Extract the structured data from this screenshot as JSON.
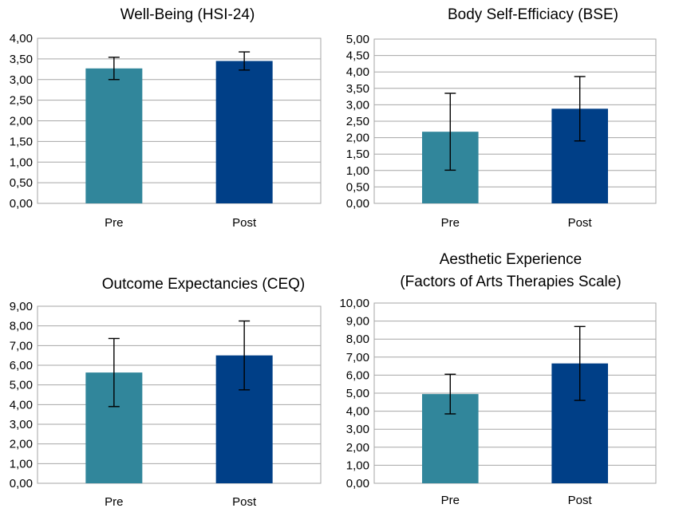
{
  "palette": {
    "pre": "#31869b",
    "post": "#003f87"
  },
  "chart_data": [
    {
      "type": "bar",
      "title": "Well-Being (HSI-24)",
      "categories": [
        "Pre",
        "Post"
      ],
      "values": [
        3.27,
        3.45
      ],
      "errors": [
        0.27,
        0.22
      ],
      "ylim": [
        0,
        4
      ],
      "ystep": 0.5,
      "ytick_labels": [
        "0,00",
        "0,50",
        "1,00",
        "1,50",
        "2,00",
        "2,50",
        "3,00",
        "3,50",
        "4,00"
      ]
    },
    {
      "type": "bar",
      "title": "Body Self-Efficiacy (BSE)",
      "categories": [
        "Pre",
        "Post"
      ],
      "values": [
        2.18,
        2.88
      ],
      "errors": [
        1.17,
        0.98
      ],
      "ylim": [
        0,
        5
      ],
      "ystep": 0.5,
      "ytick_labels": [
        "0,00",
        "0,50",
        "1,00",
        "1,50",
        "2,00",
        "2,50",
        "3,00",
        "3,50",
        "4,00",
        "4,50",
        "5,00"
      ]
    },
    {
      "type": "bar",
      "title": "Outcome Expectancies (CEQ)",
      "categories": [
        "Pre",
        "Post"
      ],
      "values": [
        5.63,
        6.5
      ],
      "errors": [
        1.73,
        1.75
      ],
      "ylim": [
        0,
        9
      ],
      "ystep": 1,
      "ytick_labels": [
        "0,00",
        "1,00",
        "2,00",
        "3,00",
        "4,00",
        "5,00",
        "6,00",
        "7,00",
        "8,00",
        "9,00"
      ]
    },
    {
      "type": "bar",
      "title": [
        "Aesthetic Experience",
        "(Factors of Arts Therapies Scale)"
      ],
      "categories": [
        "Pre",
        "Post"
      ],
      "values": [
        4.95,
        6.65
      ],
      "errors": [
        1.1,
        2.05
      ],
      "ylim": [
        0,
        10
      ],
      "ystep": 1,
      "ytick_labels": [
        "0,00",
        "1,00",
        "2,00",
        "3,00",
        "4,00",
        "5,00",
        "6,00",
        "7,00",
        "8,00",
        "9,00",
        "10,00"
      ]
    }
  ]
}
